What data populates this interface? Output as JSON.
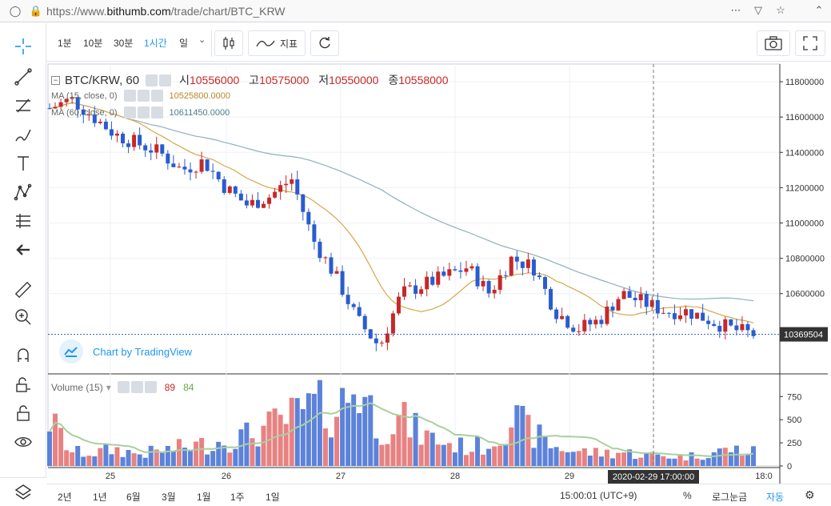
{
  "browser": {
    "url_prefix": "https://www.",
    "url_domain": "bithumb.com",
    "url_path": "/trade/chart/BTC_KRW"
  },
  "toolbar": {
    "intervals": [
      "1분",
      "10분",
      "30분",
      "1시간",
      "일"
    ],
    "active_interval": "1시간",
    "indicators_label": "지표"
  },
  "legend": {
    "symbol": "BTC/KRW, 60",
    "open_label": "시",
    "open": "10556000",
    "high_label": "고",
    "high": "10575000",
    "low_label": "저",
    "low": "10550000",
    "close_label": "종",
    "close": "10558000",
    "ma15_label": "MA (15, close, 0)",
    "ma15_value": "10525800.0000",
    "ma60_label": "MA (60, close, 0)",
    "ma60_value": "10611450.0000",
    "volume_label": "Volume (15)",
    "vol_up": "89",
    "vol_down": "84",
    "watermark": "Chart by TradingView"
  },
  "colors": {
    "up": "#c62828",
    "down": "#2a5ccf",
    "ma15": "#d4a84b",
    "ma60": "#8fb0b8",
    "vol_ma": "#a8d0a0"
  },
  "price_axis": {
    "ticks": [
      "11800000",
      "11600000",
      "11400000",
      "11200000",
      "11000000",
      "10800000",
      "10600000"
    ],
    "current_price": "10369504"
  },
  "volume_axis": {
    "ticks": [
      "750",
      "500",
      "250",
      "0"
    ]
  },
  "time_axis": {
    "labels": [
      "25",
      "26",
      "27",
      "28",
      "29",
      "18:0"
    ],
    "crosshair_time": "2020-02-29 17:00:00"
  },
  "bottom": {
    "ranges": [
      "2년",
      "1년",
      "6월",
      "3월",
      "1월",
      "1주",
      "1일"
    ],
    "clock": "15:00:01 (UTC+9)",
    "percent": "%",
    "log": "로그눈금",
    "auto": "자동"
  },
  "chart_data": {
    "type": "candlestick",
    "title": "BTC/KRW, 60",
    "ylim": [
      10150000,
      11900000
    ],
    "x": [
      "25",
      "26",
      "27",
      "28",
      "29",
      "18:0"
    ],
    "close_series_approx": [
      11650000,
      11700000,
      11600000,
      11500000,
      11450000,
      11400000,
      11300000,
      11350000,
      11200000,
      11100000,
      11150000,
      11250000,
      10900000,
      10700000,
      10450000,
      10300000,
      10600000,
      10650000,
      10700000,
      10750000,
      10600000,
      10800000,
      10750000,
      10500000,
      10400000,
      10450000,
      10600000,
      10550000,
      10500000,
      10500000,
      10450000,
      10400000,
      10369504
    ],
    "volume_series_approx": [
      500,
      150,
      140,
      180,
      130,
      160,
      200,
      230,
      280,
      330,
      420,
      520,
      640,
      580,
      900,
      420,
      500,
      330,
      250,
      200,
      230,
      520,
      350,
      200,
      160,
      140,
      150,
      120,
      110,
      100,
      140,
      180,
      150
    ]
  }
}
